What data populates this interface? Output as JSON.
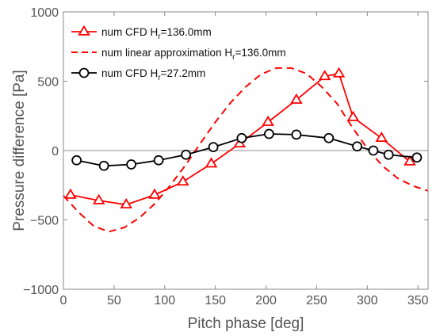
{
  "chart_data": {
    "type": "line",
    "xlabel": "Pitch phase [deg]",
    "ylabel": "Pressure difference [Pa]",
    "xlim": [
      0,
      360
    ],
    "ylim": [
      -1000,
      1000
    ],
    "xticks": [
      0,
      50,
      100,
      150,
      200,
      250,
      300,
      350
    ],
    "yticks": [
      -1000,
      -500,
      0,
      500,
      1000
    ],
    "xtick_labels": [
      "0",
      "50",
      "100",
      "150",
      "200",
      "250",
      "300",
      "350"
    ],
    "ytick_labels": [
      "−1000",
      "−500",
      "0",
      "500",
      "1000"
    ],
    "grid": false,
    "zero_line": true,
    "legend_position": "top-left",
    "legend": [
      {
        "base": "num CFD H",
        "sub": "r",
        "tail": "=136.0mm"
      },
      {
        "base": "num linear approximation H",
        "sub": "r",
        "tail": "=136.0mm"
      },
      {
        "base": "num CFD H",
        "sub": "r",
        "tail": "=27.2mm"
      }
    ],
    "series": [
      {
        "name": "num CFD Hr=136.0mm",
        "color": "#ff0000",
        "style": "solid",
        "marker": "triangle",
        "x": [
          7,
          35,
          62,
          90,
          118,
          146,
          174,
          202,
          230,
          258,
          272,
          286,
          314,
          342
        ],
        "y": [
          -320,
          -360,
          -390,
          -320,
          -225,
          -95,
          50,
          205,
          365,
          535,
          555,
          240,
          90,
          -80
        ]
      },
      {
        "name": "num linear approximation Hr=136.0mm",
        "color": "#ff0000",
        "style": "dashed",
        "marker": "none",
        "x": [
          0,
          15,
          30,
          45,
          60,
          75,
          90,
          105,
          120,
          135,
          150,
          165,
          180,
          195,
          210,
          225,
          240,
          255,
          270,
          285,
          300,
          315,
          330,
          345,
          360
        ],
        "y": [
          -325,
          -445,
          -545,
          -585,
          -555,
          -485,
          -385,
          -255,
          -110,
          50,
          205,
          345,
          460,
          550,
          595,
          595,
          555,
          460,
          340,
          170,
          15,
          -110,
          -200,
          -255,
          -290
        ]
      },
      {
        "name": "num CFD Hr=27.2mm",
        "color": "#000000",
        "style": "solid",
        "marker": "circle",
        "x": [
          13,
          40,
          67,
          94,
          121,
          148,
          176,
          203,
          230,
          262,
          290,
          306,
          321,
          349
        ],
        "y": [
          -70,
          -110,
          -100,
          -70,
          -30,
          25,
          90,
          120,
          115,
          90,
          30,
          0,
          -30,
          -50
        ]
      }
    ]
  }
}
